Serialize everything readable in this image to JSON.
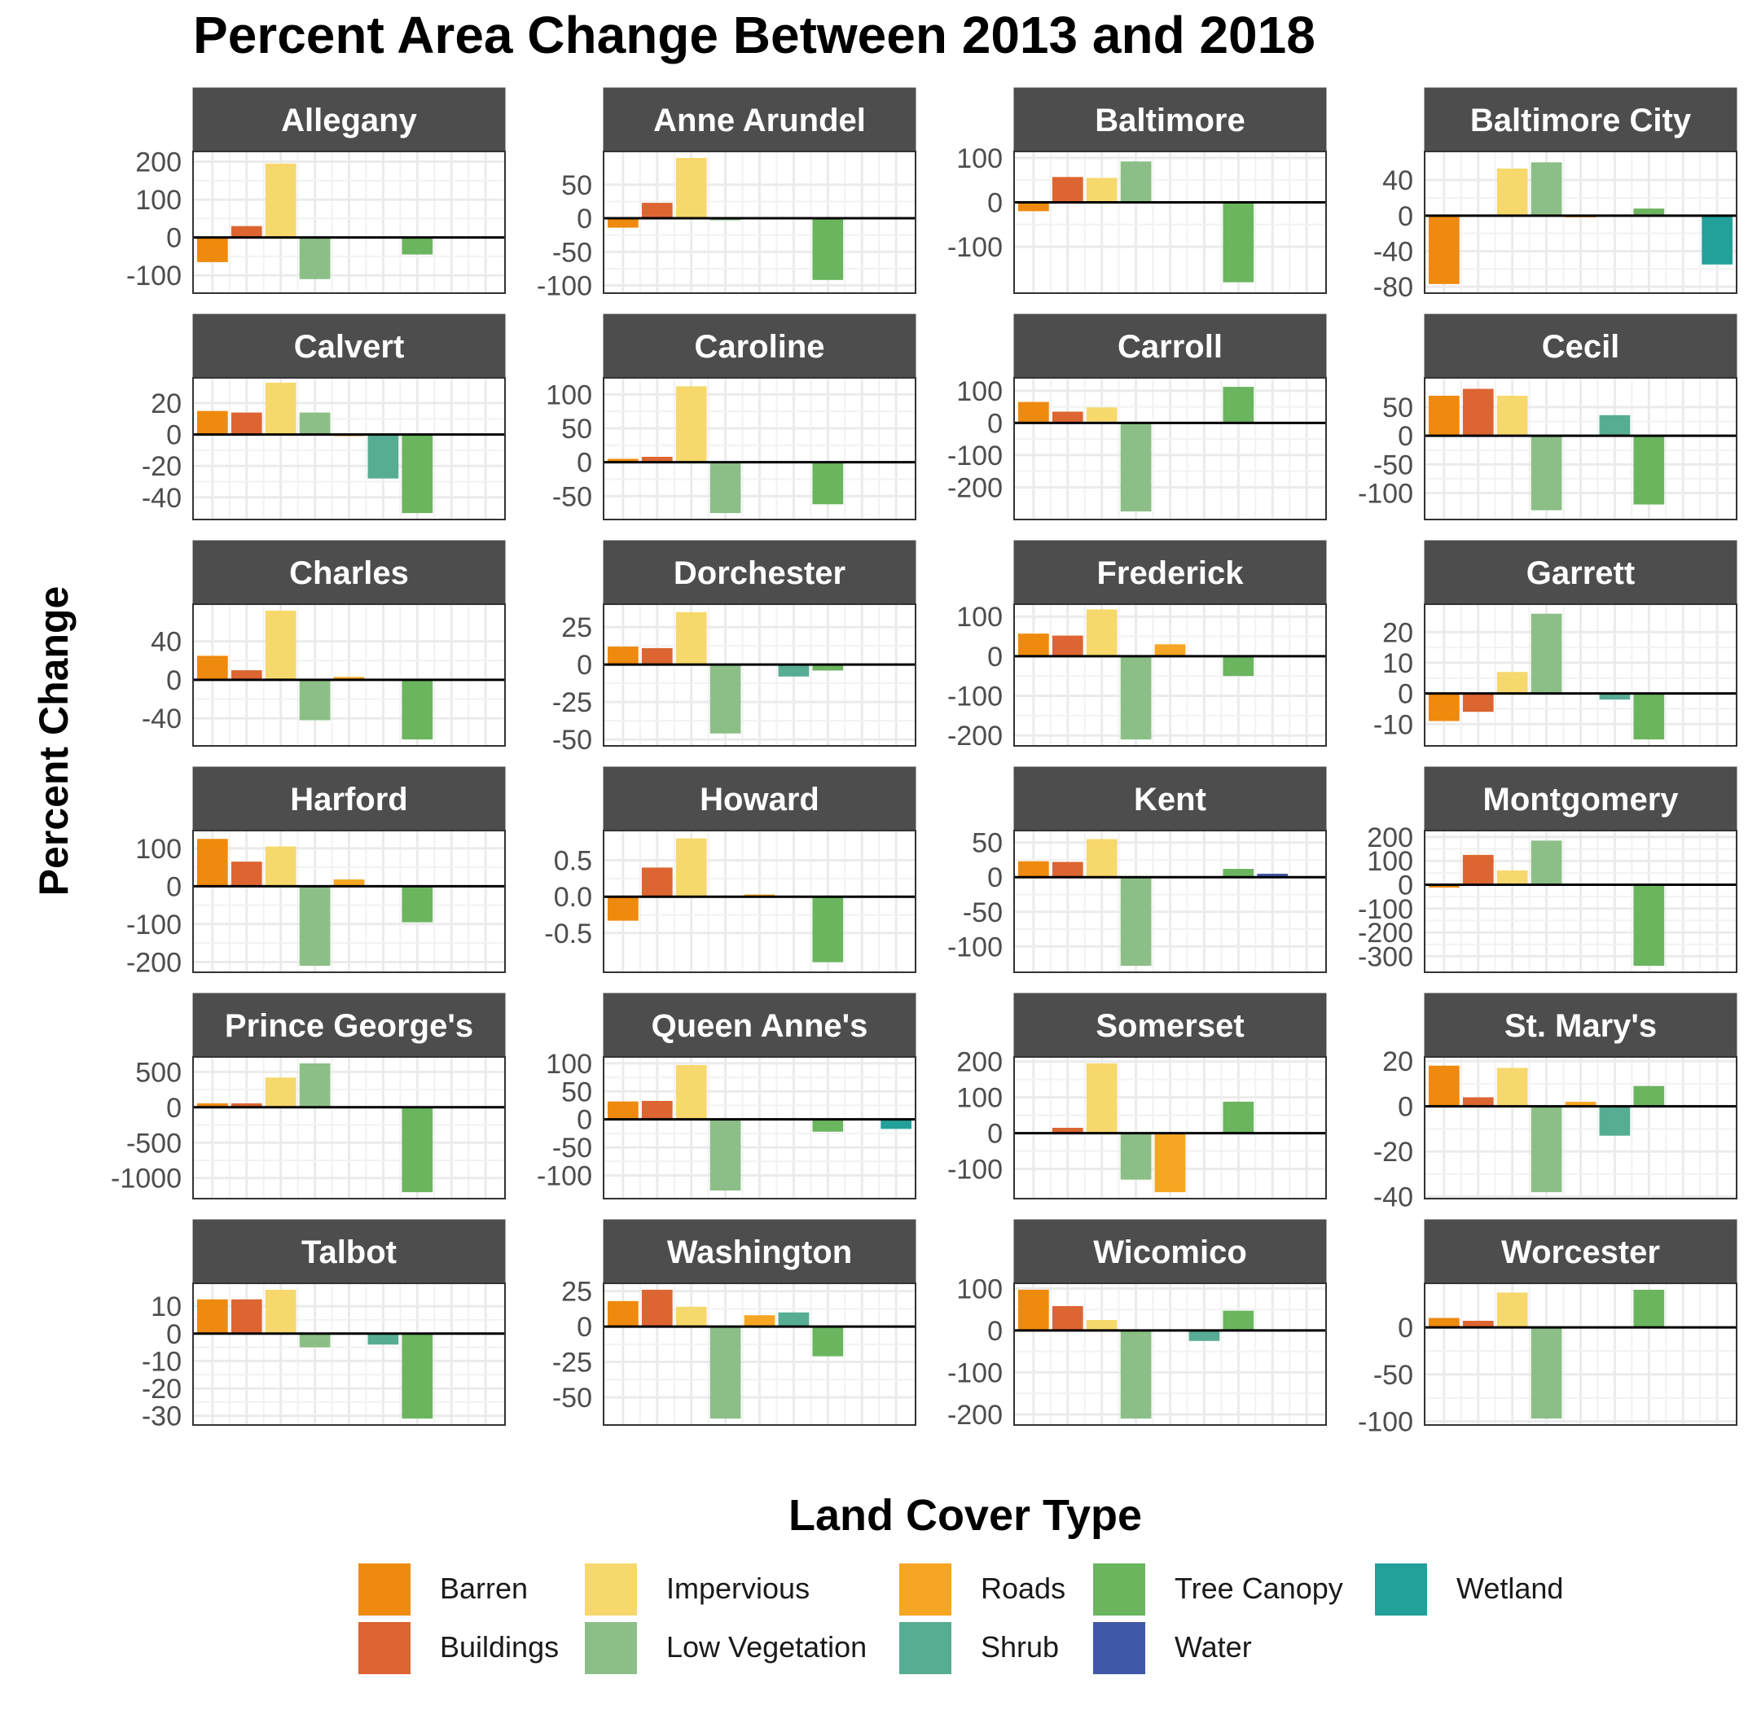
{
  "chart_data": {
    "type": "bar",
    "title": "Percent Area Change Between 2013 and 2018",
    "ylabel": "Percent Change",
    "xlabel": "",
    "categories": [
      "Barren",
      "Buildings",
      "Impervious",
      "Low Vegetation",
      "Roads",
      "Shrub",
      "Tree Canopy",
      "Water",
      "Wetland"
    ],
    "colors": {
      "Barren": "#EE8A0E",
      "Buildings": "#DD6531",
      "Impervious": "#F6D86C",
      "Low Vegetation": "#8CBF87",
      "Roads": "#F6A623",
      "Shrub": "#57AD94",
      "Tree Canopy": "#6BB55F",
      "Water": "#3F58A8",
      "Wetland": "#22A19A"
    },
    "grid": true,
    "legend_position": "bottom",
    "legend_title": "Land Cover Type",
    "panels": [
      {
        "county": "Allegany",
        "ylim": [
          -130,
          210
        ],
        "ticks": [
          200,
          100,
          0,
          -100
        ],
        "tick_labels": [
          "200",
          "100",
          "0",
          "-100"
        ],
        "values": [
          -65,
          30,
          195,
          -110,
          0,
          0,
          -45,
          0,
          0
        ]
      },
      {
        "county": "Anne Arundel",
        "ylim": [
          -102,
          90
        ],
        "ticks": [
          50,
          0,
          -50,
          -100
        ],
        "tick_labels": [
          "50",
          "0",
          "-50",
          "-100"
        ],
        "values": [
          -14,
          23,
          90,
          -3,
          0,
          0,
          -92,
          0,
          0
        ]
      },
      {
        "county": "Baltimore",
        "ylim": [
          -190,
          100
        ],
        "ticks": [
          100,
          0,
          -100
        ],
        "tick_labels": [
          "100",
          "0",
          "-100"
        ],
        "values": [
          -20,
          57,
          55,
          92,
          -3,
          0,
          -180,
          0,
          0
        ]
      },
      {
        "county": "Baltimore City",
        "ylim": [
          -80,
          65
        ],
        "ticks": [
          40,
          0,
          -40,
          -80
        ],
        "tick_labels": [
          "40",
          "0",
          "-40",
          "-80"
        ],
        "values": [
          -77,
          0,
          53,
          60,
          -2,
          0,
          8,
          0,
          -55
        ]
      },
      {
        "county": "Calvert",
        "ylim": [
          -50,
          32
        ],
        "ticks": [
          20,
          0,
          -20,
          -40
        ],
        "tick_labels": [
          "20",
          "0",
          "-20",
          "-40"
        ],
        "values": [
          15,
          14,
          33,
          14,
          -1,
          -28,
          -50,
          0,
          0
        ]
      },
      {
        "county": "Caroline",
        "ylim": [
          -75,
          115
        ],
        "ticks": [
          100,
          50,
          0,
          -50
        ],
        "tick_labels": [
          "100",
          "50",
          "0",
          "-50"
        ],
        "values": [
          5,
          8,
          112,
          -75,
          0,
          0,
          -62,
          0,
          0
        ]
      },
      {
        "county": "Carroll",
        "ylim": [
          -280,
          120
        ],
        "ticks": [
          100,
          0,
          -100,
          -200
        ],
        "tick_labels": [
          "100",
          "0",
          "-100",
          "-200"
        ],
        "values": [
          65,
          35,
          48,
          -275,
          0,
          0,
          112,
          0,
          0
        ]
      },
      {
        "county": "Cecil",
        "ylim": [
          -135,
          90
        ],
        "ticks": [
          50,
          0,
          -50,
          -100
        ],
        "tick_labels": [
          "50",
          "0",
          "-50",
          "-100"
        ],
        "values": [
          70,
          82,
          70,
          -130,
          0,
          36,
          -120,
          0,
          0
        ]
      },
      {
        "county": "Charles",
        "ylim": [
          -62,
          72
        ],
        "ticks": [
          40,
          0,
          -40
        ],
        "tick_labels": [
          "40",
          "0",
          "-40"
        ],
        "values": [
          25,
          10,
          72,
          -42,
          3,
          0,
          -62,
          0,
          0
        ]
      },
      {
        "county": "Dorchester",
        "ylim": [
          -50,
          36
        ],
        "ticks": [
          25,
          0,
          -25,
          -50
        ],
        "tick_labels": [
          "25",
          "0",
          "-25",
          "-50"
        ],
        "values": [
          12,
          11,
          35,
          -46,
          0,
          -8,
          -4,
          0,
          0
        ]
      },
      {
        "county": "Frederick",
        "ylim": [
          -210,
          115
        ],
        "ticks": [
          100,
          0,
          -100,
          -200
        ],
        "tick_labels": [
          "100",
          "0",
          "-100",
          "-200"
        ],
        "values": [
          57,
          52,
          118,
          -210,
          30,
          0,
          -50,
          0,
          0
        ]
      },
      {
        "county": "Garrett",
        "ylim": [
          -15,
          27
        ],
        "ticks": [
          20,
          10,
          0,
          -10
        ],
        "tick_labels": [
          "20",
          "10",
          "0",
          "-10"
        ],
        "values": [
          -9,
          -6,
          7,
          26,
          0,
          -2,
          -15,
          0,
          0
        ]
      },
      {
        "county": "Harford",
        "ylim": [
          -210,
          130
        ],
        "ticks": [
          100,
          0,
          -100,
          -200
        ],
        "tick_labels": [
          "100",
          "0",
          "-100",
          "-200"
        ],
        "values": [
          125,
          65,
          105,
          -210,
          18,
          0,
          -95,
          0,
          0
        ]
      },
      {
        "county": "Howard",
        "ylim": [
          -0.95,
          0.82
        ],
        "ticks": [
          0.5,
          0,
          -0.5
        ],
        "tick_labels": [
          "0.5",
          "0.0",
          "-0.5"
        ],
        "values": [
          -0.33,
          0.4,
          0.8,
          0.0,
          0.03,
          0,
          -0.9,
          0,
          0
        ]
      },
      {
        "county": "Kent",
        "ylim": [
          -128,
          58
        ],
        "ticks": [
          50,
          0,
          -50,
          -100
        ],
        "tick_labels": [
          "50",
          "0",
          "-50",
          "-100"
        ],
        "values": [
          23,
          22,
          55,
          -128,
          0,
          0,
          12,
          5,
          0
        ]
      },
      {
        "county": "Montgomery",
        "ylim": [
          -340,
          200
        ],
        "ticks": [
          200,
          100,
          0,
          -100,
          -200,
          -300
        ],
        "tick_labels": [
          "200",
          "100",
          "0",
          "-100",
          "-200",
          "-300"
        ],
        "values": [
          -12,
          125,
          60,
          185,
          0,
          0,
          -340,
          0,
          0
        ]
      },
      {
        "county": "Prince George's",
        "ylim": [
          -1200,
          620
        ],
        "ticks": [
          500,
          0,
          -500,
          -1000
        ],
        "tick_labels": [
          "500",
          "0",
          "-500",
          "-1000"
        ],
        "values": [
          55,
          55,
          420,
          620,
          0,
          0,
          -1200,
          0,
          0
        ]
      },
      {
        "county": "Queen Anne's",
        "ylim": [
          -130,
          100
        ],
        "ticks": [
          100,
          50,
          0,
          -50,
          -100
        ],
        "tick_labels": [
          "100",
          "50",
          "0",
          "-50",
          "-100"
        ],
        "values": [
          32,
          33,
          97,
          -127,
          2,
          0,
          -22,
          0,
          -17
        ]
      },
      {
        "county": "Somerset",
        "ylim": [
          -165,
          195
        ],
        "ticks": [
          200,
          100,
          0,
          -100
        ],
        "tick_labels": [
          "200",
          "100",
          "0",
          "-100"
        ],
        "values": [
          0,
          15,
          195,
          -130,
          -165,
          0,
          88,
          0,
          0
        ]
      },
      {
        "county": "St. Mary's",
        "ylim": [
          -38,
          19
        ],
        "ticks": [
          20,
          0,
          -20,
          -40
        ],
        "tick_labels": [
          "20",
          "0",
          "-20",
          "-40"
        ],
        "values": [
          18,
          4,
          17,
          -38,
          2,
          -13,
          9,
          0,
          0
        ]
      },
      {
        "county": "Talbot",
        "ylim": [
          -31,
          16
        ],
        "ticks": [
          10,
          0,
          -10,
          -20,
          -30
        ],
        "tick_labels": [
          "10",
          "0",
          "-10",
          "-20",
          "-30"
        ],
        "values": [
          12.5,
          12.5,
          16,
          -5,
          0,
          -4,
          -31,
          0,
          0
        ]
      },
      {
        "county": "Washington",
        "ylim": [
          -65,
          26
        ],
        "ticks": [
          25,
          0,
          -25,
          -50
        ],
        "tick_labels": [
          "25",
          "0",
          "-25",
          "-50"
        ],
        "values": [
          18,
          26,
          14,
          -65,
          8,
          10,
          -21,
          0,
          0
        ]
      },
      {
        "county": "Wicomico",
        "ylim": [
          -210,
          97
        ],
        "ticks": [
          100,
          0,
          -100,
          -200
        ],
        "tick_labels": [
          "100",
          "0",
          "-100",
          "-200"
        ],
        "values": [
          97,
          58,
          25,
          -210,
          0,
          -25,
          47,
          0,
          0
        ]
      },
      {
        "county": "Worcester",
        "ylim": [
          -97,
          40
        ],
        "ticks": [
          0,
          -50,
          -100
        ],
        "tick_labels": [
          "0",
          "-50",
          "-100"
        ],
        "values": [
          10,
          7,
          37,
          -97,
          0,
          0,
          40,
          0,
          0
        ]
      }
    ]
  },
  "legend": {
    "title": "Land Cover Type",
    "items": [
      {
        "label": "Barren",
        "color": "#EE8A0E"
      },
      {
        "label": "Buildings",
        "color": "#DD6531"
      },
      {
        "label": "Impervious",
        "color": "#F6D86C"
      },
      {
        "label": "Low Vegetation",
        "color": "#8CBF87"
      },
      {
        "label": "Roads",
        "color": "#F6A623"
      },
      {
        "label": "Shrub",
        "color": "#57AD94"
      },
      {
        "label": "Tree Canopy",
        "color": "#6BB55F"
      },
      {
        "label": "Water",
        "color": "#3F58A8"
      },
      {
        "label": "Wetland",
        "color": "#22A19A"
      }
    ]
  }
}
